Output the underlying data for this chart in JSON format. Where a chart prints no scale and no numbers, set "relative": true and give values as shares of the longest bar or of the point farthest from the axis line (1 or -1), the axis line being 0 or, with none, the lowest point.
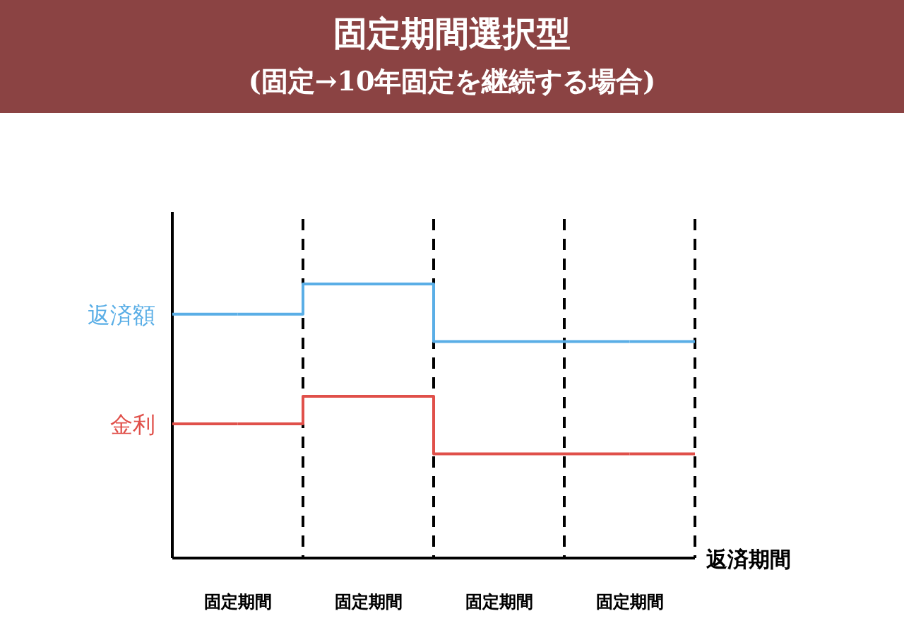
{
  "chart_data": {
    "type": "step",
    "title": "固定期間選択型",
    "subtitle": "(固定→10年固定を継続する場合)",
    "xlabel": "返済期間",
    "relative": true,
    "legend": "left",
    "grid": "x",
    "categories": [
      "固定期間",
      "固定期間",
      "固定期間",
      "固定期間"
    ],
    "series": [
      {
        "name": "返済額",
        "color": "#5aaee6",
        "values": [
          0.89,
          1,
          0.79,
          0.79
        ]
      },
      {
        "name": "金利",
        "color": "#e0504a",
        "values": [
          0.49,
          0.59,
          0.38,
          0.38
        ]
      }
    ]
  }
}
